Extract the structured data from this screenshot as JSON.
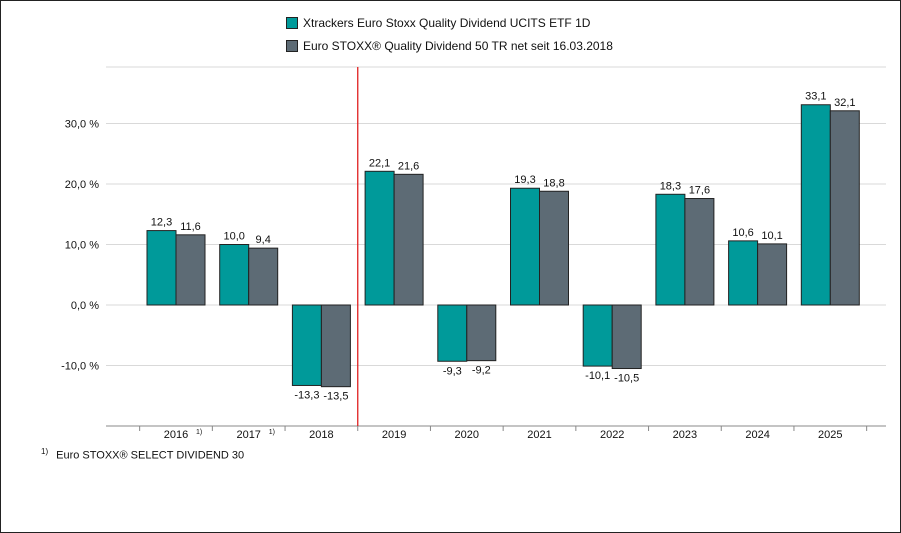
{
  "colors": {
    "series1": "#009A9A",
    "series2": "#5D6B75",
    "divider": "#E02020",
    "grid": "#D9D9D9"
  },
  "footnote": {
    "marker": "1)",
    "text": "Euro STOXX® SELECT DIVIDEND 30"
  },
  "chart_data": {
    "type": "bar",
    "categories": [
      "2016",
      "2017",
      "2018",
      "2019",
      "2020",
      "2021",
      "2022",
      "2023",
      "2024",
      "2025"
    ],
    "category_markers": [
      "1)",
      "1)",
      "",
      "",
      "",
      "",
      "",
      "",
      "",
      ""
    ],
    "series": [
      {
        "name": "Xtrackers Euro Stoxx Quality Dividend UCITS ETF 1D",
        "values": [
          12.3,
          10.0,
          -13.3,
          22.1,
          -9.3,
          19.3,
          -10.1,
          18.3,
          10.6,
          33.1
        ],
        "labels": [
          "12,3",
          "10,0",
          "-13,3",
          "22,1",
          "-9,3",
          "19,3",
          "-10,1",
          "18,3",
          "10,6",
          "33,1"
        ]
      },
      {
        "name": "Euro STOXX® Quality Dividend 50 TR net seit 16.03.2018",
        "values": [
          11.6,
          9.4,
          -13.5,
          21.6,
          -9.2,
          18.8,
          -10.5,
          17.6,
          10.1,
          32.1
        ],
        "labels": [
          "11,6",
          "9,4",
          "-13,5",
          "21,6",
          "-9,2",
          "18,8",
          "-10,5",
          "17,6",
          "10,1",
          "32,1"
        ]
      }
    ],
    "yticks": [
      {
        "value": -10,
        "label": "-10,0 %"
      },
      {
        "value": 0,
        "label": "0,0 %"
      },
      {
        "value": 10,
        "label": "10,0 %"
      },
      {
        "value": 20,
        "label": "20,0 %"
      },
      {
        "value": 30,
        "label": "30,0 %"
      }
    ],
    "ylim": [
      -20,
      40
    ],
    "divider_after_category": "2018",
    "grid": true,
    "legend_position": "top-center"
  }
}
